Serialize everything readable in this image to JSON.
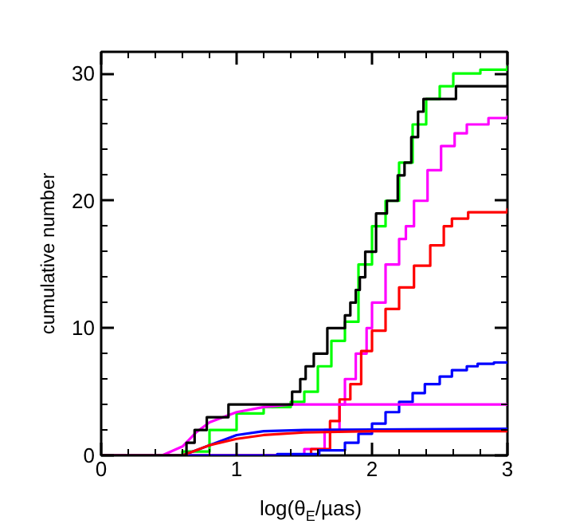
{
  "chart_data": {
    "type": "step",
    "xlabel": "log(θ$_{E}$/µas)",
    "ylabel": "cumulative number",
    "xlim": [
      0,
      3
    ],
    "ylim": [
      0,
      31.7
    ],
    "xticks": [
      0,
      1,
      2,
      3
    ],
    "yticks": [
      0,
      10,
      20,
      30
    ],
    "grid": false,
    "series": [
      {
        "color": "#00ff00",
        "x": [
          0,
          0.6,
          0.8,
          1.0,
          1.2,
          1.4,
          1.5,
          1.6,
          1.7,
          1.8,
          1.9,
          2.0,
          2.1,
          2.2,
          2.3,
          2.4,
          2.5,
          2.6,
          2.8,
          3.0
        ],
        "values": [
          0,
          0.3,
          2,
          3.3,
          3.8,
          4.2,
          5,
          7,
          9,
          10.5,
          15,
          18,
          20,
          23,
          26,
          28,
          29,
          30,
          30.3,
          30.6
        ]
      },
      {
        "color": "#ff00ff",
        "x": [
          0,
          1.5,
          1.65,
          1.76,
          1.8,
          1.88,
          1.96,
          2.0,
          2.1,
          2.2,
          2.25,
          2.31,
          2.41,
          2.51,
          2.61,
          2.7,
          2.86,
          3.0
        ],
        "values": [
          0,
          0.5,
          2,
          4,
          6,
          8,
          10,
          12,
          15,
          17,
          18,
          20,
          22.4,
          24.3,
          25.3,
          26,
          26.5,
          26.7
        ]
      },
      {
        "color": "#ff0000",
        "x": [
          0,
          1.55,
          1.69,
          1.76,
          1.84,
          1.92,
          2.0,
          2.1,
          2.2,
          2.31,
          2.43,
          2.53,
          2.59,
          2.71,
          3.0
        ],
        "values": [
          0,
          0.5,
          2.7,
          4.4,
          5.6,
          8.2,
          9.8,
          11.5,
          13.2,
          14.9,
          16.5,
          18,
          18.6,
          19.1,
          19.4
        ]
      },
      {
        "color": "#0000ff",
        "x": [
          0,
          1.3,
          1.61,
          1.8,
          1.9,
          2.0,
          2.1,
          2.2,
          2.3,
          2.39,
          2.5,
          2.59,
          2.7,
          2.78,
          2.9,
          3.0
        ],
        "values": [
          0,
          0.1,
          0.4,
          1,
          1.7,
          2.5,
          3.4,
          4.2,
          4.9,
          5.6,
          6.2,
          6.7,
          7,
          7.2,
          7.3,
          7.4
        ]
      },
      {
        "color": "#ff00ff",
        "type": "line",
        "x": [
          0,
          0.45,
          0.6,
          0.7,
          0.8,
          1.0,
          1.2,
          1.4,
          3.0
        ],
        "values": [
          0,
          0,
          0.7,
          1.8,
          2.6,
          3.4,
          3.8,
          4,
          4
        ]
      },
      {
        "color": "#0000ff",
        "type": "line",
        "x": [
          0,
          0.6,
          0.8,
          1.0,
          1.2,
          1.5,
          3.0
        ],
        "values": [
          0,
          0,
          0.8,
          1.6,
          1.9,
          2,
          2.1
        ]
      },
      {
        "color": "#ff0000",
        "type": "line",
        "x": [
          0,
          0.6,
          0.8,
          1.0,
          1.2,
          1.5,
          2.0,
          3.0
        ],
        "values": [
          0,
          0,
          0.8,
          1.3,
          1.6,
          1.8,
          1.9,
          1.9
        ]
      },
      {
        "color": "#000000",
        "x": [
          0,
          0.63,
          0.69,
          0.78,
          0.94,
          1.41,
          1.47,
          1.51,
          1.57,
          1.67,
          1.8,
          1.84,
          1.88,
          1.91,
          1.95,
          2.03,
          2.11,
          2.19,
          2.24,
          2.29,
          2.34,
          2.38,
          2.62,
          3.0
        ],
        "values": [
          0,
          1,
          2,
          3,
          4,
          5,
          6,
          7,
          8,
          10,
          11,
          12,
          13,
          14,
          16,
          19,
          20,
          22,
          23,
          25,
          27,
          28,
          29,
          29
        ]
      }
    ]
  }
}
